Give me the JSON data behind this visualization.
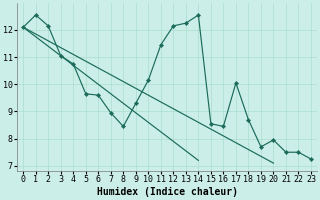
{
  "xlabel": "Humidex (Indice chaleur)",
  "bg_color": "#cceee8",
  "grid_color": "#aaddcc",
  "line_color": "#1a6b5a",
  "xlim": [
    -0.5,
    23.5
  ],
  "ylim": [
    6.8,
    13.0
  ],
  "yticks": [
    7,
    8,
    9,
    10,
    11,
    12
  ],
  "xticks": [
    0,
    1,
    2,
    3,
    4,
    5,
    6,
    7,
    8,
    9,
    10,
    11,
    12,
    13,
    14,
    15,
    16,
    17,
    18,
    19,
    20,
    21,
    22,
    23
  ],
  "line1_x": [
    0,
    1,
    2,
    3,
    4,
    5,
    6,
    7,
    8,
    9,
    10,
    11,
    12,
    13,
    14,
    15,
    16,
    17,
    18,
    19,
    20,
    21,
    22,
    23
  ],
  "line1_y": [
    12.1,
    12.55,
    12.15,
    11.05,
    10.75,
    9.65,
    9.6,
    8.95,
    8.45,
    9.3,
    10.15,
    11.45,
    12.15,
    12.25,
    12.55,
    8.55,
    8.45,
    10.05,
    8.7,
    7.7,
    7.95,
    7.5,
    7.5,
    7.25
  ],
  "line2_x": [
    0,
    1,
    2,
    3,
    4,
    5,
    6,
    7,
    8,
    9,
    10,
    11,
    12,
    13,
    14,
    15,
    16,
    17,
    18,
    19,
    20,
    21,
    22,
    23
  ],
  "line2_y": [
    12.1,
    11.75,
    11.4,
    11.05,
    10.7,
    10.35,
    10.0,
    9.65,
    9.3,
    8.95,
    8.6,
    8.25,
    7.9,
    7.55,
    7.2,
    null,
    null,
    null,
    null,
    null,
    null,
    null,
    null,
    null
  ],
  "line3_x": [
    0,
    1,
    2,
    3,
    4,
    5,
    6,
    7,
    8,
    9,
    10,
    11,
    12,
    13,
    14,
    15,
    16,
    17,
    18,
    19,
    20,
    21,
    22,
    23
  ],
  "line3_y": [
    12.1,
    11.85,
    11.6,
    11.35,
    11.1,
    10.85,
    10.6,
    10.35,
    10.1,
    9.85,
    9.6,
    9.35,
    9.1,
    8.85,
    8.6,
    8.35,
    8.1,
    7.85,
    7.6,
    7.35,
    7.1,
    null,
    null,
    null
  ],
  "font_name": "monospace",
  "font_size_axis": 6,
  "font_size_label": 7
}
